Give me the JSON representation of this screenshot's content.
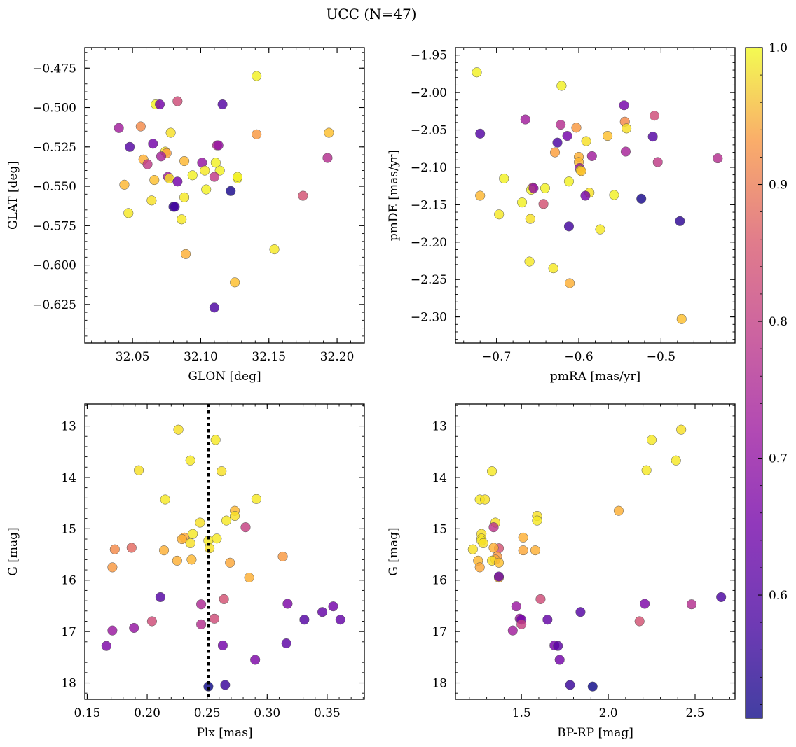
{
  "figure": {
    "title": "UCC (N=47)"
  },
  "colorbar": {
    "colormap": "plasma",
    "range": [
      0.51,
      1.0
    ],
    "ticks": [
      0.6,
      0.7,
      0.8,
      0.9,
      1.0
    ],
    "tick_labels": [
      "0.6",
      "0.7",
      "0.8",
      "0.9",
      "1.0"
    ]
  },
  "chart_data": [
    {
      "type": "scatter",
      "xlabel": "GLON [deg]",
      "ylabel": "GLAT [deg]",
      "xlim": [
        32.015,
        32.22
      ],
      "ylim": [
        -0.6495,
        -0.462
      ],
      "xticks": [
        32.05,
        32.1,
        32.15,
        32.2
      ],
      "xtick_labels": [
        "32.05",
        "32.10",
        "32.15",
        "32.20"
      ],
      "yticks": [
        -0.625,
        -0.6,
        -0.575,
        -0.55,
        -0.525,
        -0.5,
        -0.475
      ],
      "ytick_labels": [
        "−0.625",
        "−0.600",
        "−0.575",
        "−0.550",
        "−0.525",
        "−0.500",
        "−0.475"
      ],
      "x": [
        32.141,
        32.067,
        32.07,
        32.083,
        32.116,
        32.04,
        32.056,
        32.078,
        32.141,
        32.194,
        32.048,
        32.065,
        32.112,
        32.074,
        32.075,
        32.071,
        32.058,
        32.076,
        32.088,
        32.061,
        32.101,
        32.193,
        32.103,
        32.114,
        32.094,
        32.11,
        32.127,
        32.127,
        32.066,
        32.077,
        32.044,
        32.083,
        32.111,
        32.104,
        32.122,
        32.175,
        32.088,
        32.064,
        32.08,
        32.081,
        32.047,
        32.086,
        32.154,
        32.089,
        32.125,
        32.11,
        32.113
      ],
      "y": [
        -0.48,
        -0.498,
        -0.498,
        -0.496,
        -0.498,
        -0.513,
        -0.512,
        -0.516,
        -0.517,
        -0.516,
        -0.525,
        -0.523,
        -0.524,
        -0.528,
        -0.529,
        -0.531,
        -0.533,
        -0.544,
        -0.534,
        -0.536,
        -0.535,
        -0.532,
        -0.54,
        -0.54,
        -0.543,
        -0.544,
        -0.545,
        -0.544,
        -0.546,
        -0.545,
        -0.549,
        -0.547,
        -0.535,
        -0.552,
        -0.553,
        -0.556,
        -0.557,
        -0.559,
        -0.563,
        -0.563,
        -0.567,
        -0.571,
        -0.59,
        -0.593,
        -0.611,
        -0.627,
        -0.524
      ],
      "c": [
        0.99,
        0.99,
        0.62,
        0.76,
        0.58,
        0.68,
        0.86,
        0.97,
        0.88,
        0.93,
        0.58,
        0.62,
        0.71,
        0.97,
        0.89,
        0.69,
        0.91,
        0.68,
        0.92,
        0.73,
        0.66,
        0.71,
        0.98,
        0.99,
        0.99,
        0.73,
        0.99,
        0.99,
        0.93,
        0.97,
        0.92,
        0.62,
        0.99,
        0.99,
        0.52,
        0.77,
        0.98,
        0.97,
        0.54,
        0.56,
        0.98,
        0.98,
        0.98,
        0.91,
        0.93,
        0.57,
        0.66
      ]
    },
    {
      "type": "scatter",
      "xlabel": "pmRA [mas/yr]",
      "ylabel": "pmDE [mas/yr]",
      "xlim": [
        -0.75,
        -0.41
      ],
      "ylim": [
        -2.335,
        -1.94
      ],
      "xticks": [
        -0.7,
        -0.6,
        -0.5
      ],
      "xtick_labels": [
        "−0.7",
        "−0.6",
        "−0.5"
      ],
      "yticks": [
        -2.3,
        -2.25,
        -2.2,
        -2.15,
        -2.1,
        -2.05,
        -2.0,
        -1.95
      ],
      "ytick_labels": [
        "−2.30",
        "−2.25",
        "−2.20",
        "−2.15",
        "−2.10",
        "−2.05",
        "−2.00",
        "−1.95"
      ],
      "x": [
        -0.724,
        -0.621,
        -0.545,
        -0.508,
        -0.72,
        -0.665,
        -0.544,
        -0.542,
        -0.603,
        -0.565,
        -0.51,
        -0.614,
        -0.622,
        -0.591,
        -0.629,
        -0.543,
        -0.6,
        -0.584,
        -0.6,
        -0.504,
        -0.599,
        -0.431,
        -0.598,
        -0.691,
        -0.612,
        -0.656,
        -0.658,
        -0.641,
        -0.597,
        -0.587,
        -0.72,
        -0.592,
        -0.557,
        -0.669,
        -0.524,
        -0.643,
        -0.697,
        -0.659,
        -0.477,
        -0.612,
        -0.574,
        -0.66,
        -0.631,
        -0.611,
        -0.475,
        -0.626,
        -0.655
      ],
      "y": [
        -1.973,
        -1.991,
        -2.017,
        -2.031,
        -2.055,
        -2.036,
        -2.039,
        -2.048,
        -2.047,
        -2.058,
        -2.059,
        -2.058,
        -2.043,
        -2.065,
        -2.08,
        -2.079,
        -2.086,
        -2.085,
        -2.093,
        -2.093,
        -2.101,
        -2.088,
        -2.104,
        -2.115,
        -2.119,
        -2.127,
        -2.13,
        -2.128,
        -2.105,
        -2.134,
        -2.138,
        -2.138,
        -2.137,
        -2.147,
        -2.142,
        -2.149,
        -2.163,
        -2.169,
        -2.172,
        -2.179,
        -2.183,
        -2.226,
        -2.235,
        -2.255,
        -2.303,
        -2.067,
        -2.128
      ]
    },
    {
      "type": "scatter",
      "xlabel": "Plx [mas]",
      "ylabel": "G [mag]",
      "xlim": [
        0.148,
        0.381
      ],
      "ylim": [
        18.32,
        12.57
      ],
      "y_inverted": true,
      "xticks": [
        0.15,
        0.2,
        0.25,
        0.3,
        0.35
      ],
      "xtick_labels": [
        "0.15",
        "0.20",
        "0.25",
        "0.30",
        "0.35"
      ],
      "yticks": [
        13,
        14,
        15,
        16,
        17,
        18
      ],
      "ytick_labels": [
        "13",
        "14",
        "15",
        "16",
        "17",
        "18"
      ],
      "vline": {
        "x": 0.251,
        "style": "dotted"
      },
      "x": [
        0.226,
        0.257,
        0.193,
        0.236,
        0.262,
        0.291,
        0.215,
        0.244,
        0.273,
        0.273,
        0.266,
        0.282,
        0.251,
        0.238,
        0.258,
        0.252,
        0.231,
        0.229,
        0.187,
        0.173,
        0.214,
        0.313,
        0.171,
        0.225,
        0.237,
        0.269,
        0.285,
        0.236,
        0.211,
        0.264,
        0.317,
        0.355,
        0.346,
        0.245,
        0.331,
        0.361,
        0.204,
        0.256,
        0.245,
        0.189,
        0.171,
        0.316,
        0.166,
        0.263,
        0.29,
        0.265,
        0.251
      ],
      "y": [
        13.07,
        13.27,
        13.86,
        13.67,
        13.88,
        14.42,
        14.43,
        14.88,
        14.65,
        14.75,
        14.84,
        14.97,
        15.23,
        15.1,
        15.19,
        15.38,
        15.17,
        15.2,
        15.37,
        15.4,
        15.42,
        15.54,
        15.75,
        15.62,
        15.6,
        15.66,
        15.95,
        15.28,
        16.33,
        16.37,
        16.46,
        16.51,
        16.62,
        16.47,
        16.77,
        16.77,
        16.8,
        16.75,
        16.86,
        16.93,
        16.98,
        17.23,
        17.28,
        17.27,
        17.55,
        18.04,
        18.07
      ],
      "c": [
        0.97,
        0.98,
        0.97,
        0.98,
        0.97,
        0.98,
        0.98,
        0.97,
        0.92,
        0.97,
        0.98,
        0.74,
        0.98,
        0.98,
        0.98,
        0.97,
        0.9,
        0.91,
        0.81,
        0.86,
        0.91,
        0.88,
        0.88,
        0.91,
        0.92,
        0.9,
        0.91,
        0.97,
        0.58,
        0.77,
        0.63,
        0.62,
        0.6,
        0.7,
        0.58,
        0.6,
        0.76,
        0.76,
        0.71,
        0.66,
        0.67,
        0.59,
        0.63,
        0.62,
        0.63,
        0.55,
        0.51
      ]
    },
    {
      "type": "scatter",
      "xlabel": "BP-RP [mag]",
      "ylabel": "G [mag]",
      "xlim": [
        1.12,
        2.73
      ],
      "ylim": [
        18.32,
        12.57
      ],
      "y_inverted": true,
      "xticks": [
        1.5,
        2.0,
        2.5
      ],
      "xtick_labels": [
        "1.5",
        "2.0",
        "2.5"
      ],
      "yticks": [
        13,
        14,
        15,
        16,
        17,
        18
      ],
      "ytick_labels": [
        "13",
        "14",
        "15",
        "16",
        "17",
        "18"
      ],
      "x": [
        2.42,
        2.25,
        2.39,
        2.22,
        1.33,
        1.26,
        1.29,
        1.35,
        1.34,
        1.59,
        1.59,
        2.06,
        1.27,
        1.27,
        1.27,
        1.28,
        1.37,
        1.51,
        1.22,
        1.36,
        1.51,
        1.58,
        1.35,
        1.25,
        1.26,
        1.33,
        1.37,
        1.37,
        2.65,
        1.61,
        2.21,
        2.48,
        1.47,
        1.84,
        1.65,
        1.49,
        1.5,
        2.18,
        1.5,
        1.45,
        1.69,
        1.71,
        1.72,
        1.78,
        1.91,
        1.37,
        1.34
      ],
      "y": [
        13.07,
        13.27,
        13.67,
        13.86,
        13.88,
        14.43,
        14.43,
        14.88,
        14.97,
        14.75,
        14.84,
        14.65,
        15.1,
        15.19,
        15.23,
        15.28,
        15.38,
        15.17,
        15.4,
        15.54,
        15.42,
        15.42,
        15.6,
        15.62,
        15.75,
        15.62,
        15.95,
        15.93,
        16.33,
        16.37,
        16.46,
        16.47,
        16.51,
        16.62,
        16.77,
        16.75,
        16.77,
        16.8,
        16.86,
        16.98,
        17.27,
        17.28,
        17.55,
        18.04,
        18.07,
        15.66,
        15.37
      ],
      "c": [
        0.97,
        0.98,
        0.98,
        0.98,
        0.98,
        0.98,
        0.97,
        0.97,
        0.72,
        0.97,
        0.98,
        0.91,
        0.97,
        0.97,
        0.98,
        0.97,
        0.77,
        0.91,
        0.97,
        0.88,
        0.9,
        0.91,
        0.9,
        0.92,
        0.9,
        0.97,
        0.91,
        0.6,
        0.57,
        0.76,
        0.63,
        0.71,
        0.67,
        0.58,
        0.6,
        0.67,
        0.62,
        0.77,
        0.74,
        0.68,
        0.62,
        0.59,
        0.62,
        0.55,
        0.51,
        0.93,
        0.91
      ]
    }
  ]
}
